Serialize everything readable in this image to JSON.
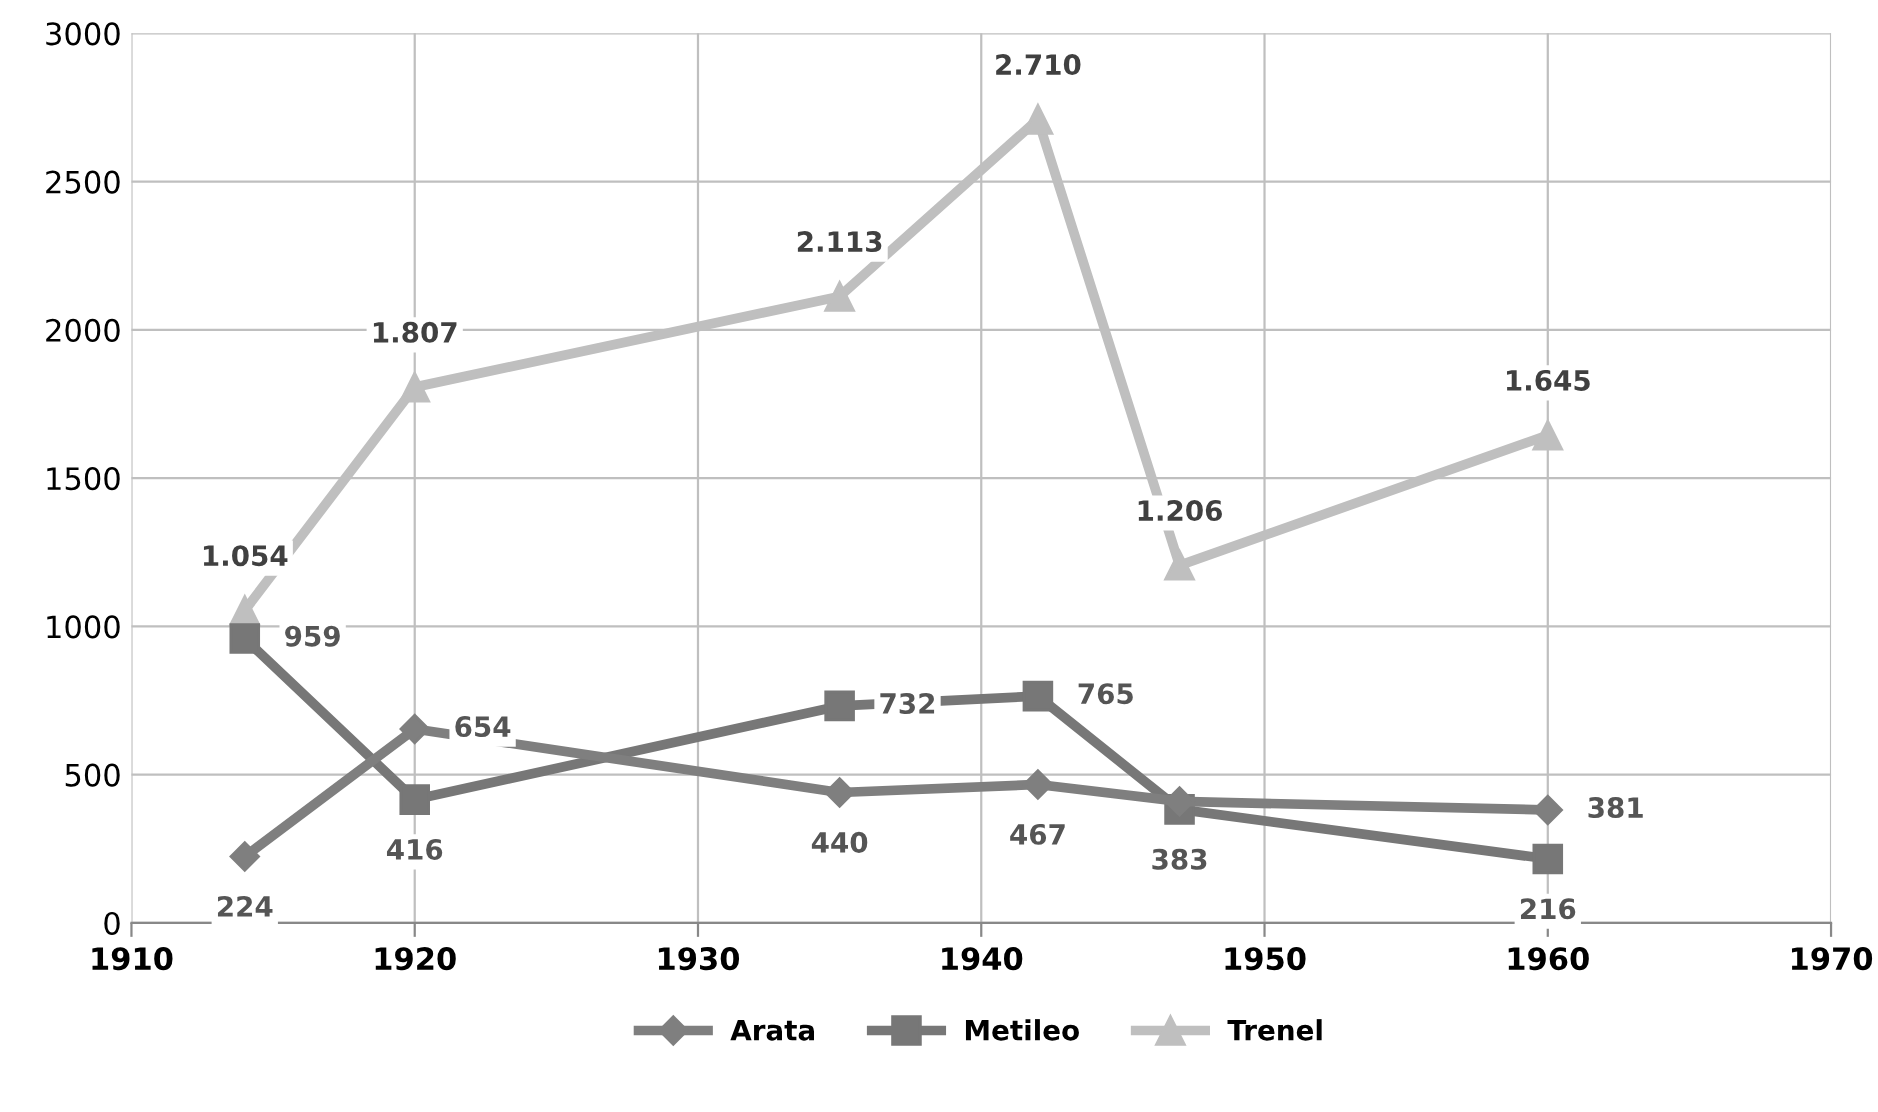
{
  "chart_data": {
    "type": "line",
    "x": [
      1914,
      1920,
      1935,
      1942,
      1947,
      1960
    ],
    "series": [
      {
        "name": "Arata",
        "color": "#7f7f7f",
        "marker": "diamond",
        "values": [
          224,
          654,
          440,
          467,
          410,
          381
        ],
        "value_labels": [
          "224",
          "654",
          "440",
          "467",
          null,
          "381"
        ]
      },
      {
        "name": "Metileo",
        "color": "#777777",
        "marker": "square",
        "values": [
          959,
          416,
          732,
          765,
          383,
          216
        ],
        "value_labels": [
          "959",
          "416",
          "732",
          "765",
          "383",
          "216"
        ]
      },
      {
        "name": "Trenel",
        "color": "#bfbfbf",
        "marker": "triangle",
        "values": [
          1054,
          1807,
          2113,
          2710,
          1206,
          1645
        ],
        "value_labels": [
          "1.054",
          "1.807",
          "2.113",
          "2.710",
          "1.206",
          "1.645"
        ]
      }
    ],
    "xlim": [
      1910,
      1970
    ],
    "xticks": [
      1910,
      1920,
      1930,
      1940,
      1950,
      1960,
      1970
    ],
    "ylim": [
      0,
      3000
    ],
    "yticks": [
      0,
      500,
      1000,
      1500,
      2000,
      2500,
      3000
    ],
    "grid": true,
    "legend": "bottom",
    "line_style": "solid"
  }
}
